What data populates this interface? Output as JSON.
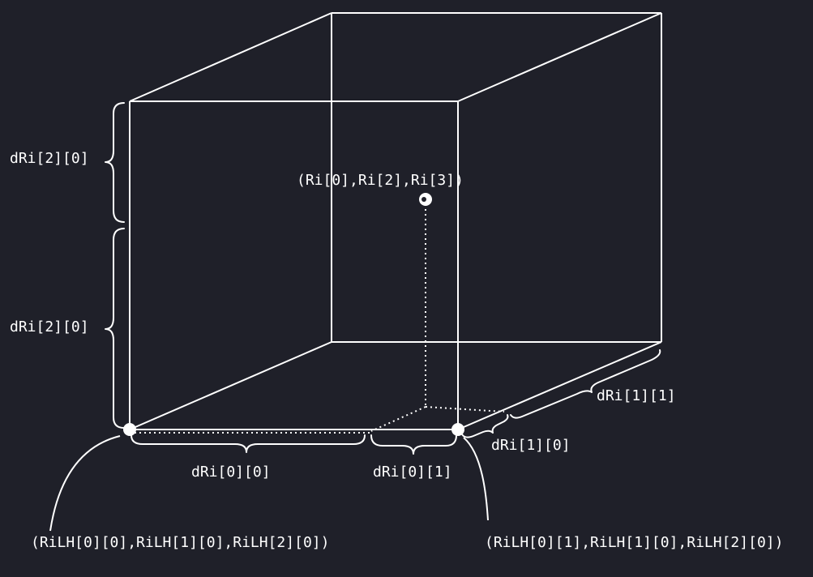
{
  "labels": {
    "center_point": "(Ri[0],Ri[2],Ri[3])",
    "corner_left": "(RiLH[0][0],RiLH[1][0],RiLH[2][0])",
    "corner_right": "(RiLH[0][1],RiLH[1][0],RiLH[2][0])",
    "dz_upper": "dRi[2][0]",
    "dz_lower": "dRi[2][0]",
    "dx0": "dRi[0][0]",
    "dx1": "dRi[0][1]",
    "dy0": "dRi[1][0]",
    "dy1": "dRi[1][1]"
  },
  "colors": {
    "background": "#1f2029",
    "stroke": "#ffffff"
  }
}
